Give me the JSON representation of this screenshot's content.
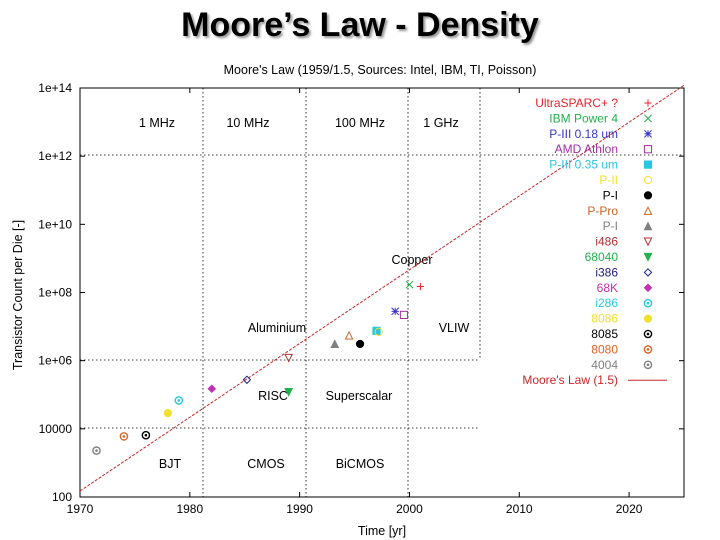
{
  "slide": {
    "title": "Moore’s Law - Density"
  },
  "chart_data": {
    "type": "scatter",
    "title": "Moore's Law (1959/1.5, Sources: Intel, IBM, TI, Poisson)",
    "xlabel": "Time [yr]",
    "ylabel": "Transistor Count per Die [-]",
    "xlim": [
      1970,
      2025
    ],
    "ylim_log10": [
      2,
      14
    ],
    "yscale": "log",
    "x_ticks": [
      "1970",
      "1980",
      "1990",
      "2000",
      "2010",
      "2020"
    ],
    "y_ticks": [
      "100",
      "10000",
      "1e+06",
      "1e+08",
      "1e+10",
      "1e+12",
      "1e+14"
    ],
    "grid": false,
    "legend_position": "top-right",
    "series": [
      {
        "name": "UltraSPARC+ ?",
        "color": "#e8242b",
        "marker": "+",
        "x": 2001.0,
        "y": 150000000.0
      },
      {
        "name": "IBM Power 4",
        "color": "#22b14c",
        "marker": "x",
        "x": 2000.0,
        "y": 170000000.0
      },
      {
        "name": "P-III 0.18 um",
        "color": "#3434c8",
        "marker": "*",
        "x": 1998.7,
        "y": 28000000.0
      },
      {
        "name": "AMD Athlon",
        "color": "#a0309e",
        "marker": "square",
        "x": 1999.5,
        "y": 22000000.0
      },
      {
        "name": "P-III 0.35 um",
        "color": "#28c6e0",
        "marker": "filled-square",
        "x": 1997.0,
        "y": 7500000.0
      },
      {
        "name": "P-II",
        "color": "#f0e030",
        "marker": "circle",
        "x": 1997.2,
        "y": 7000000.0
      },
      {
        "name": "P-I",
        "color": "#000000",
        "marker": "filled-circle",
        "x": 1995.5,
        "y": 3100000.0
      },
      {
        "name": "P-Pro",
        "color": "#c86428",
        "marker": "triangle",
        "x": 1994.5,
        "y": 5500000.0
      },
      {
        "name": "P-I",
        "color": "#808080",
        "marker": "filled-triangle",
        "x": 1993.2,
        "y": 3100000.0
      },
      {
        "name": "i486",
        "color": "#b03030",
        "marker": "inverted-triangle",
        "x": 1989.0,
        "y": 1200000.0
      },
      {
        "name": "68040",
        "color": "#22b14c",
        "marker": "filled-inverted-triangle",
        "x": 1989.0,
        "y": 120000.0
      },
      {
        "name": "i386",
        "color": "#202080",
        "marker": "diamond",
        "x": 1985.2,
        "y": 275000.0
      },
      {
        "name": "68K",
        "color": "#c030b0",
        "marker": "filled-diamond",
        "x": 1982.0,
        "y": 150000.0
      },
      {
        "name": "i286",
        "color": "#28c6e0",
        "marker": "circle-dot",
        "x": 1979.0,
        "y": 68000.0
      },
      {
        "name": "8086",
        "color": "#f0e030",
        "marker": "filled-circle",
        "x": 1978.0,
        "y": 29000.0
      },
      {
        "name": "8085",
        "color": "#000000",
        "marker": "circle-dot",
        "x": 1976.0,
        "y": 6500.0
      },
      {
        "name": "8080",
        "color": "#d86428",
        "marker": "circle-dot",
        "x": 1974.0,
        "y": 6000.0
      },
      {
        "name": "4004",
        "color": "#808080",
        "marker": "circle-dot",
        "x": 1971.5,
        "y": 2300.0
      }
    ],
    "trend": {
      "name": "Moore's Law (1.5)",
      "color": "#c82828",
      "x": [
        1970,
        2025
      ],
      "y": [
        150.0,
        120000000000000.0
      ]
    },
    "annotations": {
      "clock": [
        "1 MHz",
        "10 MHz",
        "100 MHz",
        "1 GHz"
      ],
      "eras": [
        "BJT",
        "CMOS",
        "BiCMOS"
      ],
      "architecture": [
        "Aluminium",
        "RISC",
        "Superscalar",
        "VLIW",
        "Copper"
      ]
    }
  }
}
